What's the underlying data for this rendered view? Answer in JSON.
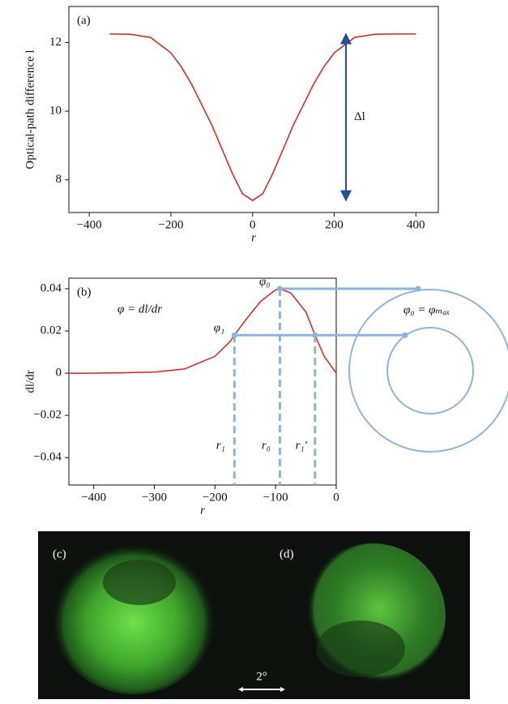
{
  "chart_data": [
    {
      "type": "line",
      "panel_label": "(a)",
      "xlabel": "r",
      "ylabel": "Optical-path difference l",
      "color": "#e0201b",
      "x": [
        -350,
        -300,
        -250,
        -200,
        -175,
        -150,
        -125,
        -100,
        -75,
        -50,
        -25,
        0,
        25,
        50,
        75,
        100,
        125,
        150,
        175,
        200,
        250,
        300,
        350,
        400
      ],
      "values": [
        12.25,
        12.24,
        12.15,
        11.7,
        11.3,
        10.8,
        10.2,
        9.6,
        8.9,
        8.2,
        7.6,
        7.4,
        7.6,
        8.2,
        8.9,
        9.6,
        10.2,
        10.8,
        11.3,
        11.7,
        12.15,
        12.24,
        12.25,
        12.25
      ],
      "xlim": [
        -450,
        455
      ],
      "ylim": [
        7.05,
        13.05
      ],
      "xticks": [
        {
          "value": -400,
          "label": "−400"
        },
        {
          "value": -200,
          "label": "−200"
        },
        0,
        200,
        400
      ],
      "yticks": [
        8,
        10,
        12
      ],
      "annotation": "Δl",
      "annotation_color": "#1f4f9e"
    },
    {
      "type": "line",
      "panel_label": "(b)",
      "xlabel": "r",
      "ylabel": "dl/dr",
      "color": "#e0201b",
      "x": [
        -440,
        -400,
        -350,
        -300,
        -250,
        -200,
        -175,
        -168,
        -150,
        -125,
        -100,
        -93,
        -75,
        -50,
        -35,
        -20,
        -10,
        0
      ],
      "values": [
        0,
        0,
        0.0002,
        0.0005,
        0.002,
        0.008,
        0.015,
        0.018,
        0.025,
        0.034,
        0.0395,
        0.04,
        0.038,
        0.029,
        0.018,
        0.008,
        0.004,
        0
      ],
      "xlim": [
        -441,
        0
      ],
      "ylim": [
        -0.053,
        0.045
      ],
      "xticks": [
        {
          "value": -400,
          "label": "−400"
        },
        {
          "value": -300,
          "label": "−300"
        },
        {
          "value": -200,
          "label": "−200"
        },
        {
          "value": -100,
          "label": "−100"
        },
        0
      ],
      "yticks": [
        {
          "value": -0.04,
          "label": "−0.04"
        },
        {
          "value": -0.02,
          "label": "−0.02"
        },
        0,
        0.02,
        0.04
      ],
      "equation": "φ = dl/dr",
      "ring_label": "φ₀ = φₘₐₓ",
      "guide_color": "#8fb4dc",
      "guides": [
        {
          "x": -168,
          "y": 0.018,
          "x_label": "r₁",
          "y_label": "φ₁"
        },
        {
          "x": -93,
          "y": 0.04,
          "x_label": "r₀",
          "y_label": "φ₀"
        },
        {
          "x": -35,
          "y": 0.018,
          "x_label": "r₁′"
        }
      ]
    }
  ],
  "images": {
    "panels": [
      "(c)",
      "(d)"
    ],
    "scale_bar": "2°"
  }
}
